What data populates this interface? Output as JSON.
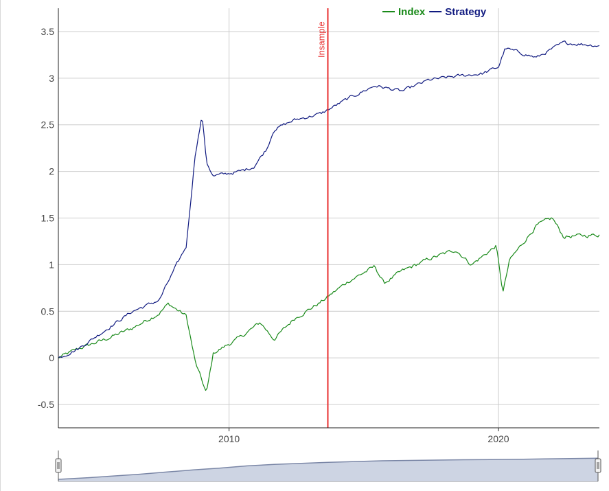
{
  "colors": {
    "index": "#1a8a1a",
    "strategy": "#101a80",
    "insample": "#e83030",
    "grid": "#cccccc",
    "axis": "#222222",
    "navigator_fill": "#cdd4e3",
    "navigator_line": "#7a86a6"
  },
  "legend": [
    {
      "label": "Index",
      "color_key": "index"
    },
    {
      "label": "Strategy",
      "color_key": "strategy"
    }
  ],
  "chart_data": {
    "type": "line",
    "x_axis": {
      "type": "date",
      "range": [
        "2003-09-01",
        "2023-09-30"
      ],
      "ticks": [
        "2010",
        "2020"
      ]
    },
    "y_axis": {
      "range": [
        -0.75,
        3.75
      ],
      "ticks": [
        "3.5",
        "3",
        "2.5",
        "2",
        "1.5",
        "1",
        "0.5",
        "0",
        "-0.5"
      ]
    },
    "grid": true,
    "legend_position": "top-center",
    "annotations": [
      {
        "type": "vertical-line",
        "label": "Insample",
        "x": "2013-09-01"
      }
    ],
    "series": [
      {
        "name": "Index",
        "x": [
          "2003-09-01",
          "2004-06-01",
          "2005-06-01",
          "2006-06-01",
          "2007-06-01",
          "2007-10-01",
          "2008-06-01",
          "2008-10-01",
          "2009-03-01",
          "2009-06-01",
          "2010-06-01",
          "2011-03-01",
          "2011-09-01",
          "2012-06-01",
          "2013-06-01",
          "2014-06-01",
          "2015-06-01",
          "2015-10-01",
          "2016-06-01",
          "2017-06-01",
          "2018-06-01",
          "2019-01-01",
          "2019-12-01",
          "2020-03-01",
          "2020-06-01",
          "2021-06-01",
          "2022-01-01",
          "2022-06-01",
          "2023-09-30"
        ],
        "y": [
          0.0,
          0.1,
          0.2,
          0.32,
          0.48,
          0.58,
          0.45,
          -0.05,
          -0.38,
          0.05,
          0.22,
          0.38,
          0.2,
          0.42,
          0.6,
          0.82,
          0.98,
          0.8,
          0.93,
          1.06,
          1.16,
          1.0,
          1.2,
          0.7,
          1.05,
          1.42,
          1.5,
          1.3,
          1.32
        ]
      },
      {
        "name": "Strategy",
        "x": [
          "2003-09-01",
          "2004-06-01",
          "2005-06-01",
          "2006-06-01",
          "2007-06-01",
          "2007-10-01",
          "2008-06-01",
          "2008-10-01",
          "2009-01-01",
          "2009-03-01",
          "2009-06-01",
          "2010-06-01",
          "2010-12-01",
          "2011-06-01",
          "2011-09-01",
          "2012-06-01",
          "2013-06-01",
          "2014-06-01",
          "2015-06-01",
          "2016-06-01",
          "2017-06-01",
          "2018-06-01",
          "2019-06-01",
          "2020-01-01",
          "2020-04-01",
          "2021-06-01",
          "2022-06-01",
          "2023-09-30"
        ],
        "y": [
          0.0,
          0.1,
          0.3,
          0.5,
          0.62,
          0.82,
          1.2,
          2.2,
          2.6,
          2.1,
          1.95,
          2.0,
          2.05,
          2.25,
          2.45,
          2.55,
          2.62,
          2.78,
          2.92,
          2.86,
          2.98,
          3.02,
          3.05,
          3.12,
          3.32,
          3.22,
          3.38,
          3.35
        ]
      }
    ]
  }
}
